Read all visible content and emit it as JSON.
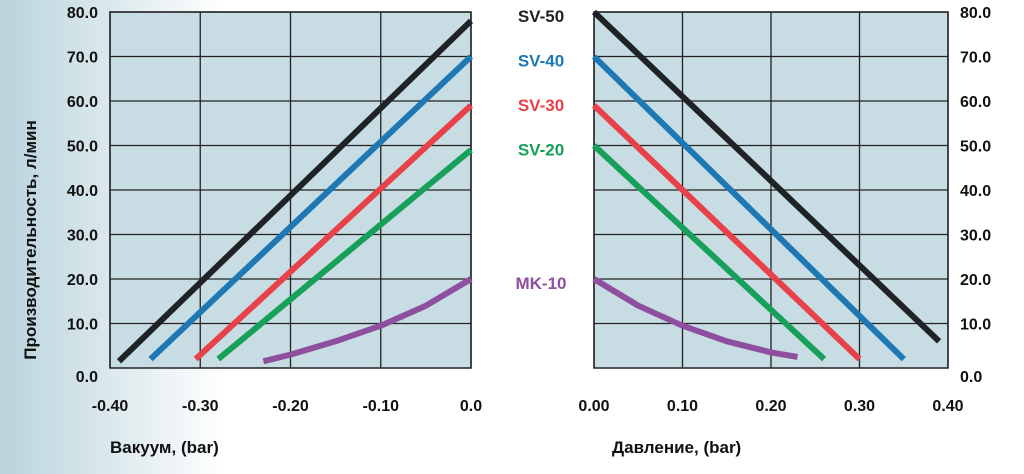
{
  "chart_data": [
    {
      "type": "line",
      "panel": "vacuum",
      "xlabel": "Вакуум, (bar)",
      "ylabel": "Производительность, л/мин",
      "xlim": [
        -0.4,
        0.0
      ],
      "ylim": [
        0,
        80
      ],
      "grid": true,
      "x_ticks": [
        "-0.40",
        "-0.30",
        "-0.20",
        "-0.10",
        "0.0"
      ],
      "y_ticks": [
        "0.0",
        "10.0",
        "20.0",
        "30.0",
        "40.0",
        "50.0",
        "60.0",
        "70.0",
        "80.0"
      ],
      "background": "#c8dce3",
      "series": [
        {
          "name": "SV-50",
          "color": "#1f2326",
          "points": [
            [
              -0.39,
              1.5
            ],
            [
              0.0,
              78
            ]
          ]
        },
        {
          "name": "SV-40",
          "color": "#1e78b4",
          "points": [
            [
              -0.355,
              2
            ],
            [
              0.0,
              70
            ]
          ]
        },
        {
          "name": "SV-30",
          "color": "#e8414a",
          "points": [
            [
              -0.305,
              2
            ],
            [
              0.0,
              59
            ]
          ]
        },
        {
          "name": "SV-20",
          "color": "#16a05a",
          "points": [
            [
              -0.28,
              2
            ],
            [
              0.0,
              49
            ]
          ]
        },
        {
          "name": "MK-10",
          "color": "#8e4f9f",
          "points": [
            [
              -0.23,
              1.5
            ],
            [
              -0.2,
              3
            ],
            [
              -0.15,
              6
            ],
            [
              -0.1,
              9.5
            ],
            [
              -0.05,
              14
            ],
            [
              0.0,
              20
            ]
          ]
        }
      ]
    },
    {
      "type": "line",
      "panel": "pressure",
      "xlabel": "Давление, (bar)",
      "ylabel": "",
      "xlim": [
        0.0,
        0.4
      ],
      "ylim": [
        0,
        80
      ],
      "grid": true,
      "x_ticks": [
        "0.00",
        "0.10",
        "0.20",
        "0.30",
        "0.40"
      ],
      "y_ticks": [
        "0.0",
        "10.0",
        "20.0",
        "30.0",
        "40.0",
        "50.0",
        "60.0",
        "70.0",
        "80.0"
      ],
      "background": "#c8dce3",
      "series": [
        {
          "name": "SV-50",
          "color": "#1f2326",
          "points": [
            [
              0.0,
              80
            ],
            [
              0.39,
              6
            ]
          ]
        },
        {
          "name": "SV-40",
          "color": "#1e78b4",
          "points": [
            [
              0.0,
              70
            ],
            [
              0.35,
              2
            ]
          ]
        },
        {
          "name": "SV-30",
          "color": "#e8414a",
          "points": [
            [
              0.0,
              59
            ],
            [
              0.3,
              2
            ]
          ]
        },
        {
          "name": "SV-20",
          "color": "#16a05a",
          "points": [
            [
              0.0,
              50
            ],
            [
              0.26,
              2
            ]
          ]
        },
        {
          "name": "MK-10",
          "color": "#8e4f9f",
          "points": [
            [
              0.0,
              20
            ],
            [
              0.05,
              14
            ],
            [
              0.1,
              9.5
            ],
            [
              0.15,
              6
            ],
            [
              0.2,
              3.5
            ],
            [
              0.23,
              2.5
            ]
          ]
        }
      ]
    }
  ],
  "legend": [
    {
      "label": "SV-50",
      "color": "#1f2326",
      "value": 80
    },
    {
      "label": "SV-40",
      "color": "#1e78b4",
      "value": 70
    },
    {
      "label": "SV-30",
      "color": "#e8414a",
      "value": 60
    },
    {
      "label": "SV-20",
      "color": "#16a05a",
      "value": 50
    },
    {
      "label": "MK-10",
      "color": "#8e4f9f",
      "value": 20
    }
  ]
}
